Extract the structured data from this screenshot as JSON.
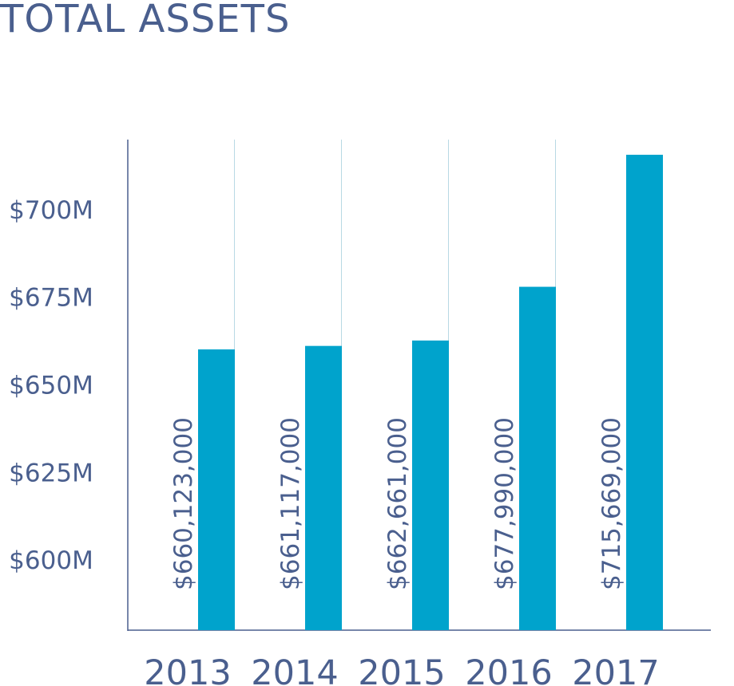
{
  "chart_data": {
    "type": "bar",
    "title": "TOTAL ASSETS",
    "xlabel": "",
    "ylabel": "",
    "categories": [
      "2013",
      "2014",
      "2015",
      "2016",
      "2017"
    ],
    "values": [
      660123000,
      661117000,
      662661000,
      677990000,
      715669000
    ],
    "value_labels": [
      "$660,123,000",
      "$661,117,000",
      "$662,661,000",
      "$677,990,000",
      "$715,669,000"
    ],
    "y_ticks": [
      {
        "value": 600000000,
        "label": "$600M"
      },
      {
        "value": 625000000,
        "label": "$625M"
      },
      {
        "value": 650000000,
        "label": "$650M"
      },
      {
        "value": 675000000,
        "label": "$675M"
      },
      {
        "value": 700000000,
        "label": "$700M"
      }
    ],
    "ylim": [
      580000000,
      720000000
    ],
    "grid": "vertical separators between categories",
    "legend": "none",
    "colors": {
      "bar": "#00a3cc",
      "text": "#4a5f8e",
      "axis": "#4a5f8e",
      "separator": "#b8d9e4"
    }
  }
}
